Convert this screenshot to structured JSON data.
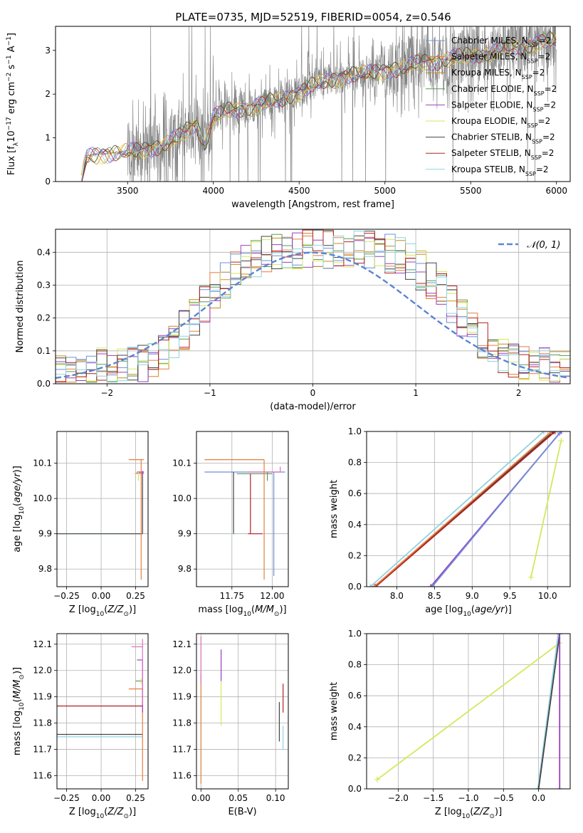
{
  "figure": {
    "title": "PLATE=0735, MJD=52519, FIBERID=0054, z=0.546"
  },
  "chart_data": [
    {
      "id": "spectrum",
      "type": "line",
      "xlabel": "wavelength [Angstrom, rest frame]",
      "ylabel": "Flux [f_λ 10^-17 erg cm^-2 s^-1 A^-1]",
      "xlim": [
        3080,
        6080
      ],
      "ylim": [
        0,
        3.55
      ],
      "xticks": [
        3500,
        4000,
        4500,
        5000,
        5500,
        6000
      ],
      "yticks": [
        0,
        1,
        2,
        3
      ],
      "grid": false,
      "legend_position": "top-right",
      "legend": [
        {
          "label": "Chabrier MILES, N",
          "sub": "SSP",
          "suffix": "=2",
          "color": "#6f8fd6"
        },
        {
          "label": "Salpeter MILES, N",
          "sub": "SSP",
          "suffix": "=2",
          "color": "#e87d3e"
        },
        {
          "label": "Kroupa MILES, N",
          "sub": "SSP",
          "suffix": "=2",
          "color": "#c88a1e"
        },
        {
          "label": "Chabrier ELODIE, N",
          "sub": "SSP",
          "suffix": "=2",
          "color": "#5a9a5a"
        },
        {
          "label": "Salpeter ELODIE, N",
          "sub": "SSP",
          "suffix": "=2",
          "color": "#9b3fbf"
        },
        {
          "label": "Kroupa ELODIE, N",
          "sub": "SSP",
          "suffix": "=2",
          "color": "#d4e85a"
        },
        {
          "label": "Chabrier STELIB, N",
          "sub": "SSP",
          "suffix": "=2",
          "color": "#444444"
        },
        {
          "label": "Salpeter STELIB, N",
          "sub": "SSP",
          "suffix": "=2",
          "color": "#b22222"
        },
        {
          "label": "Kroupa STELIB, N",
          "sub": "SSP",
          "suffix": "=2",
          "color": "#8fd3e0"
        }
      ],
      "data_color": "#808080",
      "model_continuum": {
        "x": [
          3230,
          3260,
          3300,
          3400,
          3500,
          3600,
          3700,
          3800,
          3850,
          3900,
          3950,
          4000,
          4100,
          4200,
          4300,
          4400,
          4500,
          4600,
          4700,
          4800,
          4900,
          5000,
          5100,
          5200,
          5300,
          5400,
          5500,
          5600,
          5700,
          5800,
          5900,
          6000
        ],
        "y": [
          0.02,
          0.58,
          0.62,
          0.65,
          0.7,
          0.75,
          0.82,
          1.05,
          1.2,
          1.35,
          0.85,
          1.5,
          1.65,
          1.7,
          1.8,
          1.9,
          2.05,
          2.25,
          2.35,
          2.45,
          2.5,
          2.55,
          2.6,
          2.75,
          2.75,
          2.85,
          2.9,
          2.95,
          3.05,
          3.1,
          3.2,
          3.25
        ]
      }
    },
    {
      "id": "residuals",
      "type": "line",
      "xlabel": "(data-model)/error",
      "ylabel": "Normed distribution",
      "xlim": [
        -2.5,
        2.5
      ],
      "ylim": [
        0,
        0.47
      ],
      "xticks": [
        -2,
        -1,
        0,
        1,
        2
      ],
      "yticks": [
        0.0,
        0.1,
        0.2,
        0.3,
        0.4
      ],
      "grid": true,
      "legend_position": "top-right",
      "legend": [
        {
          "label": "𝒩(0, 1)",
          "color": "#5b84d4",
          "style": "dashed"
        }
      ],
      "gaussian": {
        "mean": 0,
        "sigma": 1
      },
      "hist_bin_width": 0.1,
      "series_colors": [
        "#6f8fd6",
        "#e87d3e",
        "#c88a1e",
        "#5a9a5a",
        "#9b3fbf",
        "#d4e85a",
        "#444444",
        "#b22222",
        "#8fd3e0"
      ]
    },
    {
      "id": "age-vs-Z",
      "type": "line",
      "xlabel": "Z [log10(Z/Z⊙)]",
      "ylabel": "age [log10(age/yr)]",
      "xlim": [
        -0.32,
        0.34
      ],
      "ylim": [
        9.75,
        10.19
      ],
      "xticks": [
        -0.25,
        0.0,
        0.25
      ],
      "yticks": [
        9.8,
        9.9,
        10.0,
        10.1
      ],
      "grid": true
    },
    {
      "id": "age-vs-mass",
      "type": "line",
      "xlabel": "mass [log10(M/M⊙)]",
      "ylabel": "",
      "xlim": [
        11.53,
        12.1
      ],
      "ylim": [
        9.75,
        10.19
      ],
      "xticks": [
        11.75,
        12.0
      ],
      "yticks": [
        9.8,
        9.9,
        10.0,
        10.1
      ],
      "grid": true
    },
    {
      "id": "massweight-vs-age",
      "type": "line",
      "xlabel": "age [log10(age/yr)]",
      "ylabel": "mass weight",
      "xlim": [
        7.6,
        10.3
      ],
      "ylim": [
        0,
        1
      ],
      "xticks": [
        8.0,
        8.5,
        9.0,
        9.5,
        10.0
      ],
      "yticks": [
        0.0,
        0.2,
        0.4,
        0.6,
        0.8,
        1.0
      ],
      "grid": true,
      "series": [
        {
          "color": "#8fd3e0",
          "x": [
            7.65,
            9.95
          ],
          "y": [
            0.0,
            1.0
          ]
        },
        {
          "color": "#444444",
          "x": [
            7.7,
            10.08
          ],
          "y": [
            0.0,
            1.0
          ]
        },
        {
          "color": "#b22222",
          "x": [
            7.72,
            10.1
          ],
          "y": [
            0.0,
            1.0
          ]
        },
        {
          "color": "#e87d3e",
          "x": [
            7.7,
            10.05
          ],
          "y": [
            0.0,
            1.0
          ]
        },
        {
          "color": "#9b3fbf",
          "x": [
            8.45,
            10.18
          ],
          "y": [
            0.0,
            1.0
          ]
        },
        {
          "color": "#6f8fd6",
          "x": [
            8.47,
            10.16
          ],
          "y": [
            0.0,
            0.99
          ]
        },
        {
          "color": "#d4e85a",
          "x": [
            9.78,
            10.18
          ],
          "y": [
            0.06,
            0.94
          ]
        }
      ]
    },
    {
      "id": "mass-vs-Z",
      "type": "line",
      "xlabel": "Z [log10(Z/Z⊙)]",
      "ylabel": "mass [log10(M/M⊙)]",
      "xlim": [
        -0.32,
        0.34
      ],
      "ylim": [
        11.55,
        12.14
      ],
      "xticks": [
        -0.25,
        0.0,
        0.25
      ],
      "yticks": [
        11.6,
        11.7,
        11.8,
        11.9,
        12.0,
        12.1
      ],
      "grid": true
    },
    {
      "id": "mass-vs-ebv",
      "type": "line",
      "xlabel": "E(B-V)",
      "ylabel": "",
      "xlim": [
        -0.006,
        0.117
      ],
      "ylim": [
        11.55,
        12.14
      ],
      "xticks": [
        0.0,
        0.05,
        0.1
      ],
      "yticks": [
        11.6,
        11.7,
        11.8,
        11.9,
        12.0,
        12.1
      ],
      "grid": true
    },
    {
      "id": "massweight-vs-Z",
      "type": "line",
      "xlabel": "Z [log10(Z/Z⊙)]",
      "ylabel": "mass weight",
      "xlim": [
        -2.45,
        0.45
      ],
      "ylim": [
        0,
        1
      ],
      "xticks": [
        -2.0,
        -1.5,
        -1.0,
        -0.5,
        0.0
      ],
      "yticks": [
        0.0,
        0.2,
        0.4,
        0.6,
        0.8,
        1.0
      ],
      "grid": true,
      "series": [
        {
          "color": "#d4e85a",
          "x": [
            -2.3,
            0.3
          ],
          "y": [
            0.06,
            0.94
          ]
        },
        {
          "color": "#8fd3e0",
          "x": [
            -0.01,
            0.28
          ],
          "y": [
            0.0,
            1.0
          ]
        },
        {
          "color": "#444444",
          "x": [
            0.0,
            0.3
          ],
          "y": [
            0.0,
            1.0
          ]
        },
        {
          "color": "#9b3fbf",
          "x": [
            0.3,
            0.3
          ],
          "y": [
            0.0,
            1.0
          ]
        }
      ]
    }
  ]
}
